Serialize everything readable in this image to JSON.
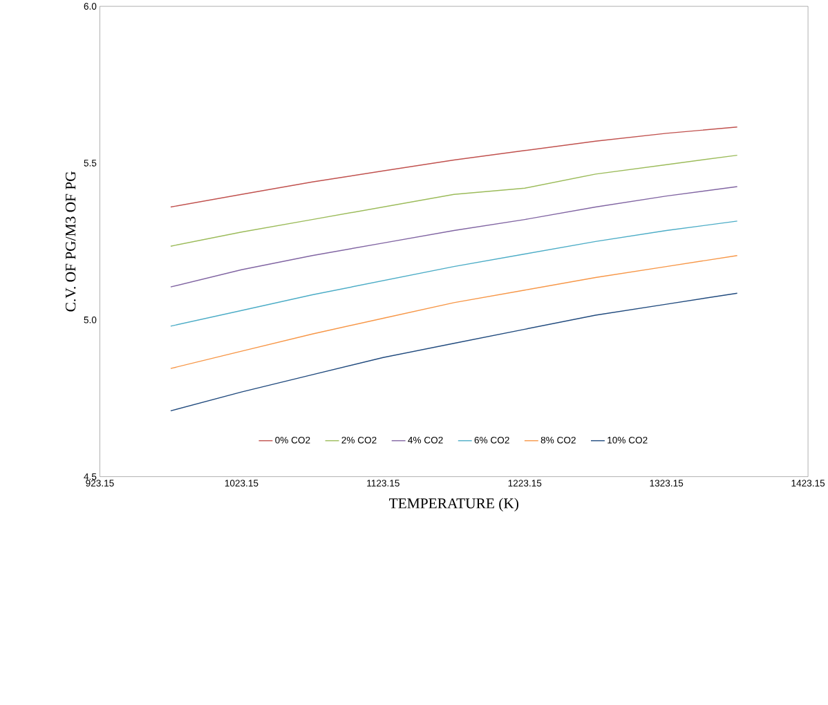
{
  "chart_data": {
    "type": "line",
    "xlabel": "TEMPERATURE  (K)",
    "ylabel": "C.V. OF PG/M3 OF PG",
    "x": [
      973.15,
      1023.15,
      1073.15,
      1123.15,
      1173.15,
      1223.15,
      1273.15,
      1323.15,
      1373.15
    ],
    "series": [
      {
        "name": "0% CO2",
        "color": "#c0504d",
        "values": [
          5.36,
          5.4,
          5.44,
          5.475,
          5.51,
          5.54,
          5.57,
          5.595,
          5.615
        ]
      },
      {
        "name": "2% CO2",
        "color": "#9bbb59",
        "values": [
          5.235,
          5.28,
          5.32,
          5.36,
          5.4,
          5.42,
          5.465,
          5.495,
          5.525
        ]
      },
      {
        "name": "4% CO2",
        "color": "#8064a2",
        "values": [
          5.105,
          5.16,
          5.205,
          5.245,
          5.285,
          5.32,
          5.36,
          5.395,
          5.425
        ]
      },
      {
        "name": "6% CO2",
        "color": "#4bacc6",
        "values": [
          4.98,
          5.03,
          5.08,
          5.125,
          5.17,
          5.21,
          5.25,
          5.285,
          5.315
        ]
      },
      {
        "name": "8% CO2",
        "color": "#f79646",
        "values": [
          4.845,
          4.9,
          4.955,
          5.005,
          5.055,
          5.095,
          5.135,
          5.17,
          5.205
        ]
      },
      {
        "name": "10% CO2",
        "color": "#1f497d",
        "values": [
          4.71,
          4.77,
          4.825,
          4.88,
          4.925,
          4.97,
          5.015,
          5.05,
          5.085
        ]
      }
    ],
    "xlim": [
      923.15,
      1423.15
    ],
    "xticks": [
      923.15,
      1023.15,
      1123.15,
      1223.15,
      1323.15,
      1423.15
    ],
    "ylim": [
      4.5,
      6.0
    ],
    "yticks": [
      4.5,
      {
        "value": 5.0,
        "label": "5.0"
      },
      5.5,
      {
        "value": 6.0,
        "label": "6.0"
      }
    ],
    "grid": false,
    "legend": "bottom",
    "marker": "none",
    "line_style": "solid"
  }
}
